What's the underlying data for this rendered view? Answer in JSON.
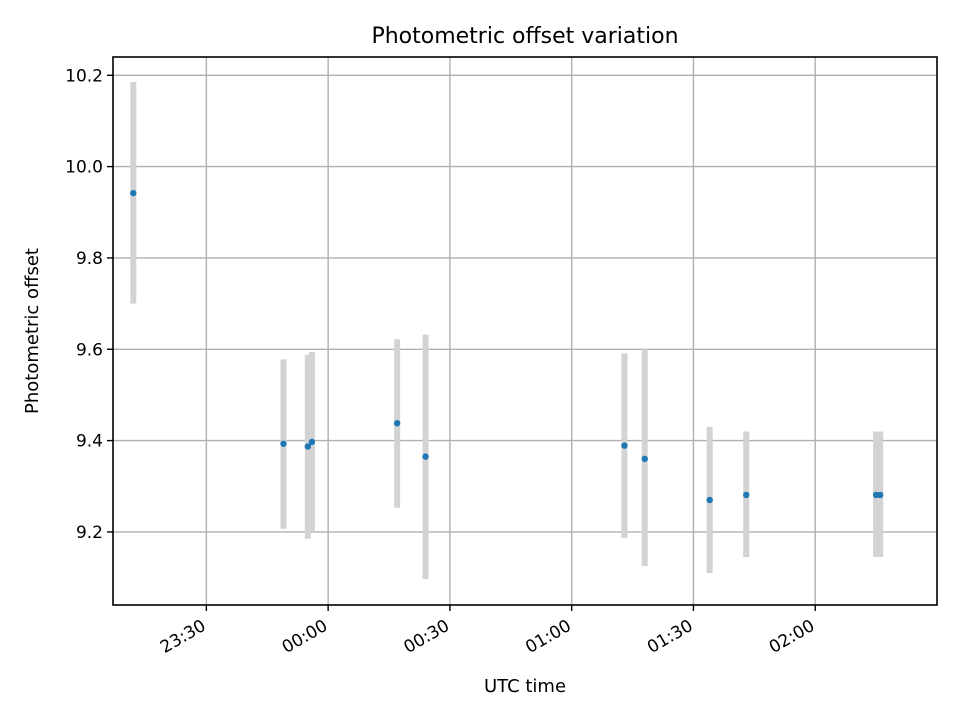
{
  "chart_data": {
    "type": "scatter",
    "title": "Photometric offset variation",
    "xlabel": "UTC time",
    "ylabel": "Photometric offset",
    "xlim": [
      "23:07",
      "02:30"
    ],
    "ylim": [
      9.04,
      10.24
    ],
    "x_ticks": [
      "23:30",
      "00:00",
      "00:30",
      "01:00",
      "01:30",
      "02:00"
    ],
    "y_ticks": [
      "9.2",
      "9.4",
      "9.6",
      "9.8",
      "10.0",
      "10.2"
    ],
    "grid": true,
    "points": [
      {
        "time": "23:12",
        "y": 9.942,
        "err_low": 9.7,
        "err_high": 10.185
      },
      {
        "time": "23:49",
        "y": 9.393,
        "err_low": 9.207,
        "err_high": 9.578
      },
      {
        "time": "23:55",
        "y": 9.387,
        "err_low": 9.185,
        "err_high": 9.588
      },
      {
        "time": "23:56",
        "y": 9.397,
        "err_low": 9.2,
        "err_high": 9.594
      },
      {
        "time": "00:17",
        "y": 9.438,
        "err_low": 9.253,
        "err_high": 9.622
      },
      {
        "time": "00:24",
        "y": 9.365,
        "err_low": 9.097,
        "err_high": 9.632
      },
      {
        "time": "01:13",
        "y": 9.389,
        "err_low": 9.187,
        "err_high": 9.591
      },
      {
        "time": "01:18",
        "y": 9.36,
        "err_low": 9.125,
        "err_high": 9.6
      },
      {
        "time": "01:34",
        "y": 9.27,
        "err_low": 9.11,
        "err_high": 9.43
      },
      {
        "time": "01:43",
        "y": 9.281,
        "err_low": 9.145,
        "err_high": 9.42
      },
      {
        "time": "02:15",
        "y": 9.281,
        "err_low": 9.145,
        "err_high": 9.42
      },
      {
        "time": "02:16",
        "y": 9.281,
        "err_low": 9.145,
        "err_high": 9.42
      }
    ],
    "colors": {
      "point": "#1f77b4",
      "errorbar": "#d3d3d3",
      "grid": "#b0b0b0"
    }
  }
}
